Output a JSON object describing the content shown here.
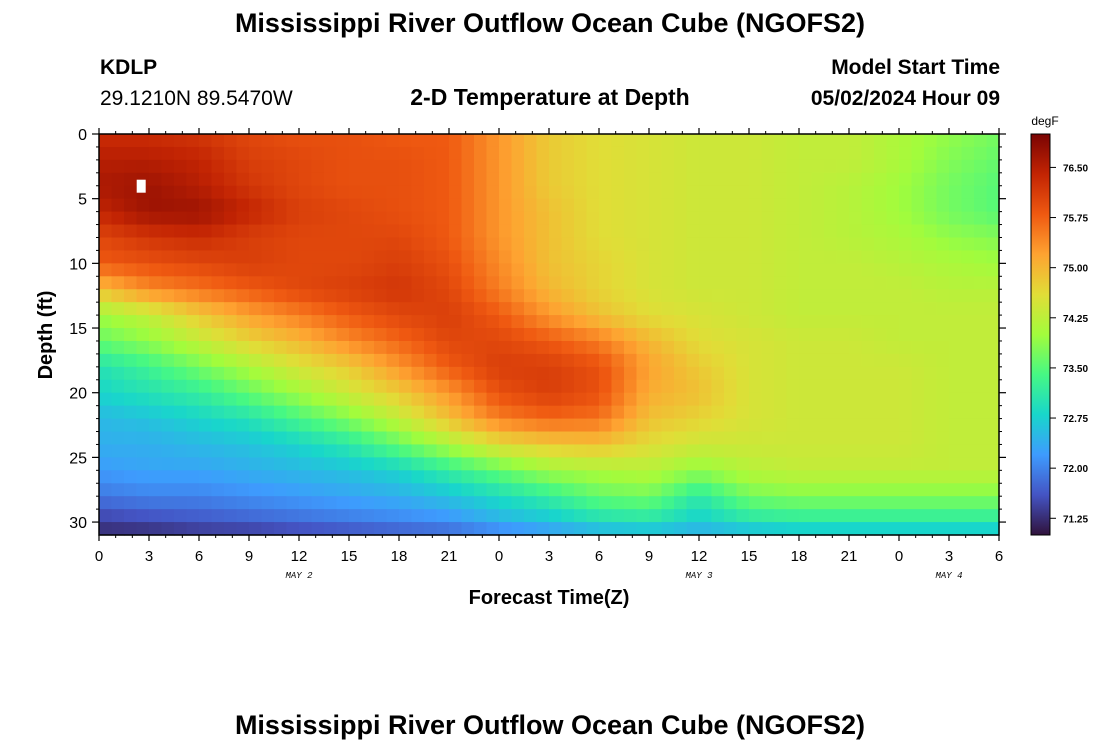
{
  "header": {
    "title": "Mississippi River Outflow Ocean Cube (NGOFS2)",
    "station_id": "KDLP",
    "coordinates": "29.1210N  89.5470W",
    "subtitle": "2-D Temperature at Depth",
    "model_start_label": "Model Start Time",
    "model_start_value": "05/02/2024 Hour 09"
  },
  "footer": {
    "title": "Mississippi River Outflow Ocean Cube (NGOFS2)"
  },
  "chart_data": {
    "type": "heatmap",
    "title": "2-D Temperature at Depth",
    "xlabel": "Forecast Time(Z)",
    "ylabel": "Depth (ft)",
    "x_range_hours": [
      0,
      54
    ],
    "x_tick_labels": [
      "0",
      "3",
      "6",
      "9",
      "12",
      "15",
      "18",
      "21",
      "0",
      "3",
      "6",
      "9",
      "12",
      "15",
      "18",
      "21",
      "0",
      "3",
      "6"
    ],
    "day_labels": [
      {
        "text": "MAY 2",
        "hour": 12
      },
      {
        "text": "MAY 3",
        "hour": 36
      },
      {
        "text": "MAY 4",
        "hour": 51
      }
    ],
    "y_range": [
      0,
      31
    ],
    "y_ticks": [
      0,
      5,
      10,
      15,
      20,
      25,
      30
    ],
    "y_inverted": true,
    "colorbar": {
      "unit": "degF",
      "range": [
        71.0,
        77.0
      ],
      "ticks": [
        "71.25",
        "72.00",
        "72.75",
        "73.50",
        "74.25",
        "75.00",
        "75.75",
        "76.50"
      ],
      "colors": [
        "#30123b",
        "#4454c4",
        "#3e9bfe",
        "#18d6cb",
        "#46f884",
        "#a2fc3c",
        "#e1dd37",
        "#fea331",
        "#ef5911",
        "#c22403",
        "#7a0403"
      ]
    },
    "depths_ft": [
      0,
      2,
      4,
      6,
      8,
      10,
      12,
      14,
      16,
      18,
      20,
      22,
      24,
      26,
      28,
      30,
      31
    ],
    "hours": [
      0,
      3,
      6,
      9,
      12,
      15,
      18,
      21,
      24,
      27,
      30,
      33,
      36,
      39,
      42,
      45,
      48,
      51,
      54
    ],
    "temperature_degF": [
      [
        76.3,
        76.3,
        76.2,
        76.0,
        75.9,
        75.9,
        75.8,
        75.8,
        75.3,
        74.8,
        74.6,
        74.5,
        74.4,
        74.4,
        74.3,
        74.3,
        74.1,
        73.9,
        73.7
      ],
      [
        76.5,
        76.5,
        76.4,
        76.1,
        76.0,
        75.9,
        75.9,
        75.8,
        75.3,
        74.8,
        74.6,
        74.5,
        74.4,
        74.4,
        74.3,
        74.3,
        74.1,
        73.8,
        73.6
      ],
      [
        76.6,
        76.7,
        76.5,
        76.2,
        76.0,
        75.9,
        75.9,
        75.8,
        75.3,
        74.8,
        74.6,
        74.5,
        74.4,
        74.4,
        74.3,
        74.2,
        74.0,
        73.7,
        73.5
      ],
      [
        76.4,
        76.7,
        76.7,
        76.4,
        76.1,
        76.0,
        75.9,
        75.8,
        75.3,
        74.9,
        74.6,
        74.5,
        74.4,
        74.4,
        74.3,
        74.2,
        74.0,
        73.7,
        73.5
      ],
      [
        76.0,
        76.2,
        76.3,
        76.1,
        76.0,
        76.0,
        76.0,
        75.8,
        75.3,
        74.9,
        74.6,
        74.5,
        74.4,
        74.4,
        74.3,
        74.2,
        74.1,
        73.9,
        73.8
      ],
      [
        75.8,
        75.9,
        76.0,
        76.1,
        76.0,
        76.0,
        76.1,
        75.9,
        75.4,
        74.9,
        74.7,
        74.5,
        74.4,
        74.4,
        74.3,
        74.3,
        74.2,
        74.1,
        74.0
      ],
      [
        74.9,
        75.4,
        75.6,
        75.8,
        76.0,
        76.1,
        76.2,
        76.0,
        75.5,
        75.0,
        74.7,
        74.5,
        74.4,
        74.4,
        74.3,
        74.3,
        74.3,
        74.2,
        74.2
      ],
      [
        74.0,
        74.3,
        74.8,
        75.2,
        75.5,
        75.8,
        76.0,
        76.1,
        75.8,
        75.3,
        74.9,
        74.6,
        74.5,
        74.4,
        74.3,
        74.3,
        74.3,
        74.3,
        74.3
      ],
      [
        73.6,
        73.9,
        74.3,
        74.7,
        75.0,
        75.4,
        75.7,
        76.0,
        76.0,
        75.8,
        75.5,
        75.0,
        74.6,
        74.5,
        74.4,
        74.4,
        74.3,
        74.3,
        74.3
      ],
      [
        73.0,
        73.3,
        73.7,
        74.1,
        74.5,
        74.8,
        75.3,
        75.8,
        76.1,
        76.1,
        75.9,
        75.2,
        74.8,
        74.5,
        74.4,
        74.4,
        74.4,
        74.3,
        74.3
      ],
      [
        72.8,
        73.0,
        73.2,
        73.6,
        74.0,
        74.4,
        74.8,
        75.3,
        75.9,
        76.1,
        75.9,
        75.1,
        74.9,
        74.5,
        74.4,
        74.4,
        74.4,
        74.3,
        74.3
      ],
      [
        72.5,
        72.6,
        72.8,
        73.0,
        73.4,
        73.8,
        74.3,
        74.9,
        75.5,
        75.7,
        75.6,
        74.9,
        74.7,
        74.5,
        74.4,
        74.4,
        74.4,
        74.3,
        74.3
      ],
      [
        72.4,
        72.4,
        72.5,
        72.6,
        72.8,
        73.1,
        73.6,
        74.1,
        74.6,
        74.8,
        74.9,
        74.6,
        74.4,
        74.4,
        74.4,
        74.4,
        74.4,
        74.3,
        74.3
      ],
      [
        72.2,
        72.3,
        72.3,
        72.4,
        72.5,
        72.6,
        72.8,
        73.2,
        73.6,
        74.0,
        74.1,
        74.2,
        73.9,
        74.2,
        74.3,
        74.3,
        74.3,
        74.3,
        74.3
      ],
      [
        71.9,
        72.0,
        72.0,
        72.1,
        72.2,
        72.3,
        72.4,
        72.6,
        72.9,
        73.2,
        73.6,
        73.7,
        73.1,
        73.7,
        73.8,
        73.8,
        73.8,
        73.8,
        73.8
      ],
      [
        71.4,
        71.5,
        71.6,
        71.7,
        71.8,
        71.9,
        72.0,
        72.1,
        72.4,
        72.6,
        72.9,
        73.0,
        72.7,
        73.0,
        73.1,
        73.1,
        73.1,
        73.1,
        73.1
      ],
      [
        71.2,
        71.2,
        71.3,
        71.3,
        71.4,
        71.5,
        71.6,
        71.7,
        71.9,
        72.1,
        72.3,
        72.4,
        72.3,
        72.4,
        72.5,
        72.5,
        72.5,
        72.5,
        72.5
      ]
    ],
    "marker": {
      "hour": 2.5,
      "depth_ft": 4
    }
  }
}
